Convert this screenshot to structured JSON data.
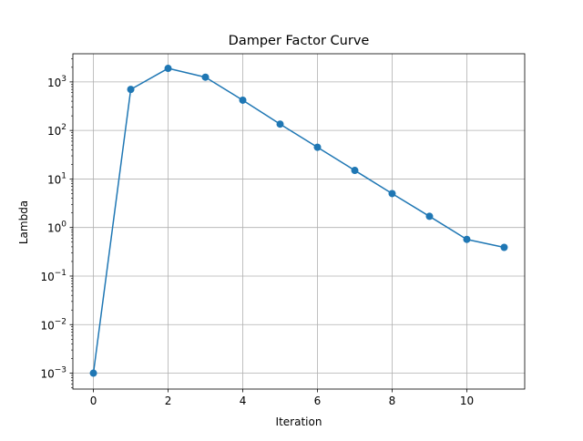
{
  "chart_data": {
    "type": "line",
    "title": "Damper Factor Curve",
    "xlabel": "Iteration",
    "ylabel": "Lambda",
    "yscale": "log",
    "grid": true,
    "xlim": [
      -0.55,
      11.55
    ],
    "ylim": [
      0.00047,
      3800
    ],
    "x_ticks": [
      {
        "value": 0,
        "label": "0"
      },
      {
        "value": 2,
        "label": "2"
      },
      {
        "value": 4,
        "label": "4"
      },
      {
        "value": 6,
        "label": "6"
      },
      {
        "value": 8,
        "label": "8"
      },
      {
        "value": 10,
        "label": "10"
      }
    ],
    "y_ticks": [
      {
        "value": 0.001,
        "base": "10",
        "exp": "−3"
      },
      {
        "value": 0.01,
        "base": "10",
        "exp": "−2"
      },
      {
        "value": 0.1,
        "base": "10",
        "exp": "−1"
      },
      {
        "value": 1,
        "base": "10",
        "exp": "0"
      },
      {
        "value": 10,
        "base": "10",
        "exp": "1"
      },
      {
        "value": 100,
        "base": "10",
        "exp": "2"
      },
      {
        "value": 1000,
        "base": "10",
        "exp": "3"
      }
    ],
    "series": [
      {
        "color": "#1f77b4",
        "marker": "circle",
        "x": [
          0,
          1,
          2,
          3,
          4,
          5,
          6,
          7,
          8,
          9,
          10,
          11
        ],
        "y": [
          0.001,
          700,
          1900,
          1250,
          420,
          135,
          45,
          15,
          5,
          1.7,
          0.57,
          0.39
        ]
      }
    ]
  }
}
